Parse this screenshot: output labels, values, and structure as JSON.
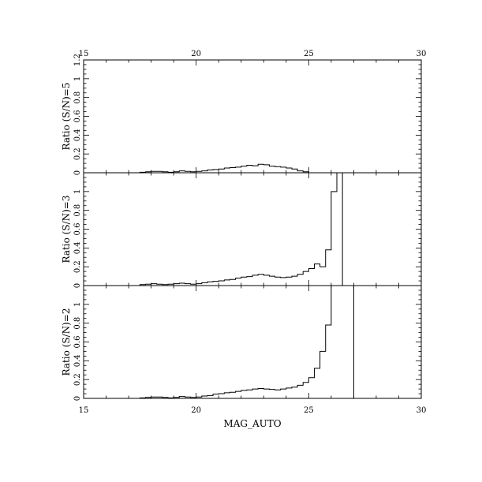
{
  "chart_data": [
    {
      "type": "line",
      "panel": "top",
      "ylabel": "Ratio (S/N)=5",
      "xlim": [
        15,
        30
      ],
      "ylim": [
        0,
        1.2
      ],
      "x_ticks": [
        15,
        20,
        25,
        30
      ],
      "top_tick_labels": [
        "15",
        "20",
        "25",
        "30"
      ],
      "y_ticks": [
        0,
        0.2,
        0.4,
        0.6,
        0.8,
        1,
        1.2
      ],
      "y_tick_labels": [
        "0",
        "0.2",
        "0.4",
        "0.6",
        "0.8",
        "1",
        "1.2"
      ],
      "bin_edges": [
        17.5,
        17.75,
        18,
        18.25,
        18.5,
        18.75,
        19,
        19.25,
        19.5,
        19.75,
        20,
        20.25,
        20.5,
        20.75,
        21,
        21.25,
        21.5,
        21.75,
        22,
        22.25,
        22.5,
        22.75,
        23,
        23.25,
        23.5,
        23.75,
        24,
        24.25,
        24.5,
        24.75,
        25
      ],
      "values": [
        0.005,
        0.01,
        0.015,
        0.015,
        0.01,
        0.005,
        0.01,
        0.02,
        0.015,
        0.01,
        0.015,
        0.02,
        0.03,
        0.035,
        0.04,
        0.05,
        0.055,
        0.06,
        0.07,
        0.08,
        0.075,
        0.09,
        0.085,
        0.07,
        0.065,
        0.06,
        0.05,
        0.04,
        0.02,
        0.01
      ]
    },
    {
      "type": "line",
      "panel": "middle",
      "ylabel": "Ratio (S/N)=3",
      "xlim": [
        15,
        30
      ],
      "ylim": [
        0,
        1.2
      ],
      "y_ticks": [
        0,
        0.2,
        0.4,
        0.6,
        0.8,
        1
      ],
      "y_tick_labels": [
        "0",
        "0.2",
        "0.4",
        "0.6",
        "0.8",
        "1"
      ],
      "bin_edges": [
        17.5,
        17.75,
        18,
        18.25,
        18.5,
        18.75,
        19,
        19.25,
        19.5,
        19.75,
        20,
        20.25,
        20.5,
        20.75,
        21,
        21.25,
        21.5,
        21.75,
        22,
        22.25,
        22.5,
        22.75,
        23,
        23.25,
        23.5,
        23.75,
        24,
        24.25,
        24.5,
        24.75,
        25,
        25.25,
        25.5,
        25.75,
        26,
        26.25,
        26.5
      ],
      "values": [
        0.01,
        0.015,
        0.02,
        0.015,
        0.01,
        0.015,
        0.02,
        0.025,
        0.02,
        0.015,
        0.02,
        0.03,
        0.04,
        0.045,
        0.05,
        0.06,
        0.065,
        0.08,
        0.09,
        0.095,
        0.11,
        0.12,
        0.11,
        0.1,
        0.09,
        0.085,
        0.09,
        0.1,
        0.12,
        0.15,
        0.18,
        0.23,
        0.2,
        0.38,
        1.0,
        1.3
      ]
    },
    {
      "type": "line",
      "panel": "bottom",
      "ylabel": "Ratio (S/N)=2",
      "xlabel": "MAG_AUTO",
      "xlim": [
        15,
        30
      ],
      "ylim": [
        0,
        1.2
      ],
      "x_ticks": [
        15,
        20,
        25,
        30
      ],
      "x_tick_labels": [
        "15",
        "20",
        "25",
        "30"
      ],
      "y_ticks": [
        0,
        0.2,
        0.4,
        0.6,
        0.8,
        1
      ],
      "y_tick_labels": [
        "0",
        "0.2",
        "0.4",
        "0.6",
        "0.8",
        "1"
      ],
      "bin_edges": [
        17.5,
        17.75,
        18,
        18.25,
        18.5,
        18.75,
        19,
        19.25,
        19.5,
        19.75,
        20,
        20.25,
        20.5,
        20.75,
        21,
        21.25,
        21.5,
        21.75,
        22,
        22.25,
        22.5,
        22.75,
        23,
        23.25,
        23.5,
        23.75,
        24,
        24.25,
        24.5,
        24.75,
        25,
        25.25,
        25.5,
        25.75,
        26,
        26.25,
        26.5,
        26.75,
        27
      ],
      "values": [
        0.005,
        0.01,
        0.015,
        0.015,
        0.01,
        0.005,
        0.01,
        0.02,
        0.015,
        0.01,
        0.015,
        0.025,
        0.03,
        0.045,
        0.05,
        0.06,
        0.065,
        0.075,
        0.085,
        0.09,
        0.1,
        0.105,
        0.1,
        0.095,
        0.09,
        0.1,
        0.11,
        0.12,
        0.14,
        0.17,
        0.22,
        0.32,
        0.5,
        0.78,
        1.3,
        1.3,
        1.3,
        1.3
      ]
    }
  ]
}
